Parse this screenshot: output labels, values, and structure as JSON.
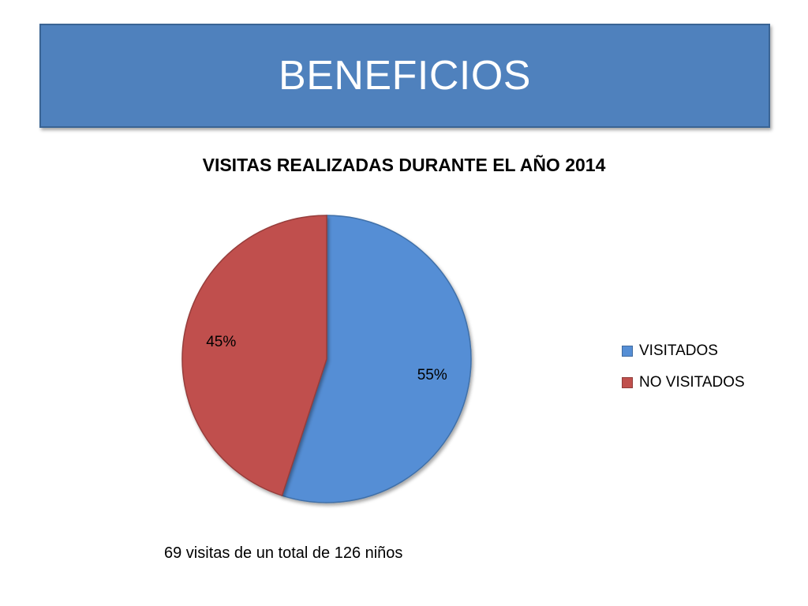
{
  "header": {
    "title": "BENEFICIOS"
  },
  "chart_data": {
    "type": "pie",
    "title": "VISITAS REALIZADAS DURANTE EL AÑO 2014",
    "categories": [
      "VISITADOS",
      "NO VISITADOS"
    ],
    "values": [
      55,
      45
    ],
    "data_labels": [
      "55%",
      "45%"
    ],
    "colors": [
      "#558ed5",
      "#c0504d"
    ],
    "legend_placement": "right"
  },
  "footnote": "69 visitas de un total de 126 niños"
}
